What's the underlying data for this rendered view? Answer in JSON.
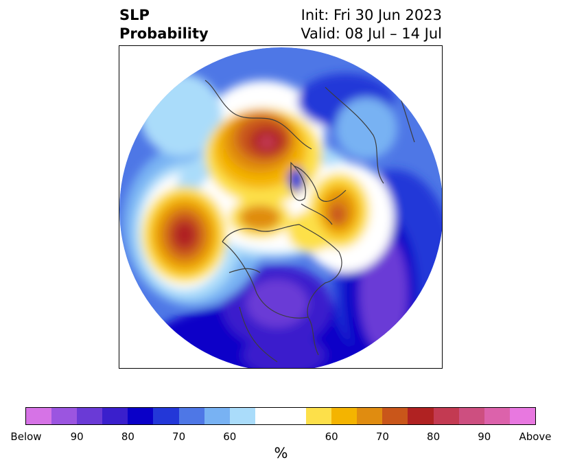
{
  "title": {
    "left_line1": "SLP",
    "left_line2": "Probability",
    "right_line1": "Init: Fri 30 Jun 2023",
    "right_line2": "Valid: 08 Jul – 14 Jul"
  },
  "colorbar": {
    "unit": "%",
    "colors": [
      "#d673e6",
      "#9b55e0",
      "#6a3ad6",
      "#3a1fcc",
      "#0a00c8",
      "#2337d8",
      "#4e77e6",
      "#78b2f3",
      "#aadcfa",
      "#ffffff",
      "#ffffff",
      "#fde04a",
      "#f4b400",
      "#e08c10",
      "#c9561a",
      "#b02222",
      "#c33a52",
      "#cd4f80",
      "#dc62ab",
      "#e878e0"
    ],
    "tick_labels": [
      "Below",
      "90",
      "80",
      "70",
      "60",
      "60",
      "70",
      "80",
      "90",
      "Above"
    ]
  },
  "map": {
    "projection": "north-polar-stereographic",
    "field": "sea-level-pressure-probability"
  }
}
